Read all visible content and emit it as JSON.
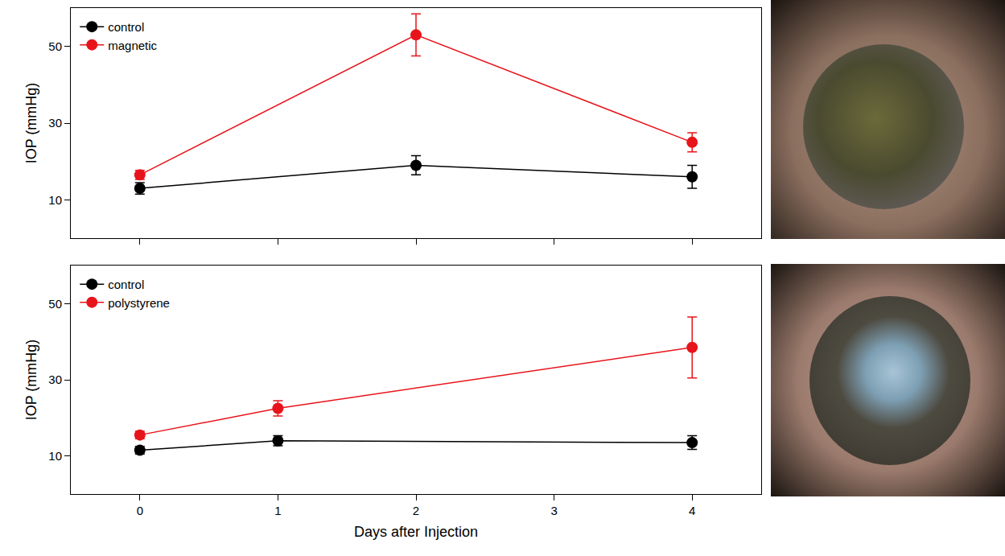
{
  "chart_data": [
    {
      "type": "line",
      "x": [
        0,
        2,
        4
      ],
      "series": [
        {
          "name": "control",
          "color": "#000000",
          "marker": "circle",
          "values": [
            13,
            19,
            16
          ],
          "error": [
            1.5,
            2.5,
            3
          ]
        },
        {
          "name": "magnetic",
          "color": "#e8141b",
          "marker": "circle",
          "values": [
            16.5,
            53,
            25
          ],
          "error": [
            1.2,
            5.5,
            2.5
          ]
        }
      ],
      "xlim": [
        -0.5,
        4.5
      ],
      "xticks": [
        0,
        1,
        2,
        3,
        4
      ],
      "ylim": [
        0,
        60
      ],
      "yticks": [
        10,
        30,
        50
      ],
      "ylabel": "IOP (mmHg)",
      "legend": "upper left",
      "tick_labels": "y"
    },
    {
      "type": "line",
      "x": [
        0,
        1,
        4
      ],
      "series": [
        {
          "name": "control",
          "color": "#000000",
          "marker": "circle",
          "values": [
            11.5,
            14,
            13.5
          ],
          "error": [
            1,
            1.3,
            1.8
          ]
        },
        {
          "name": "polystyrene",
          "color": "#e8141b",
          "marker": "circle",
          "values": [
            15.5,
            22.5,
            38.5
          ],
          "error": [
            1,
            2,
            8
          ]
        }
      ],
      "xlim": [
        -0.5,
        4.5
      ],
      "xticks": [
        0,
        1,
        2,
        3,
        4
      ],
      "ylim": [
        0,
        60
      ],
      "yticks": [
        10,
        30,
        50
      ],
      "xlabel": "Days after Injection",
      "ylabel": "IOP (mmHg)",
      "legend": "upper left"
    }
  ]
}
